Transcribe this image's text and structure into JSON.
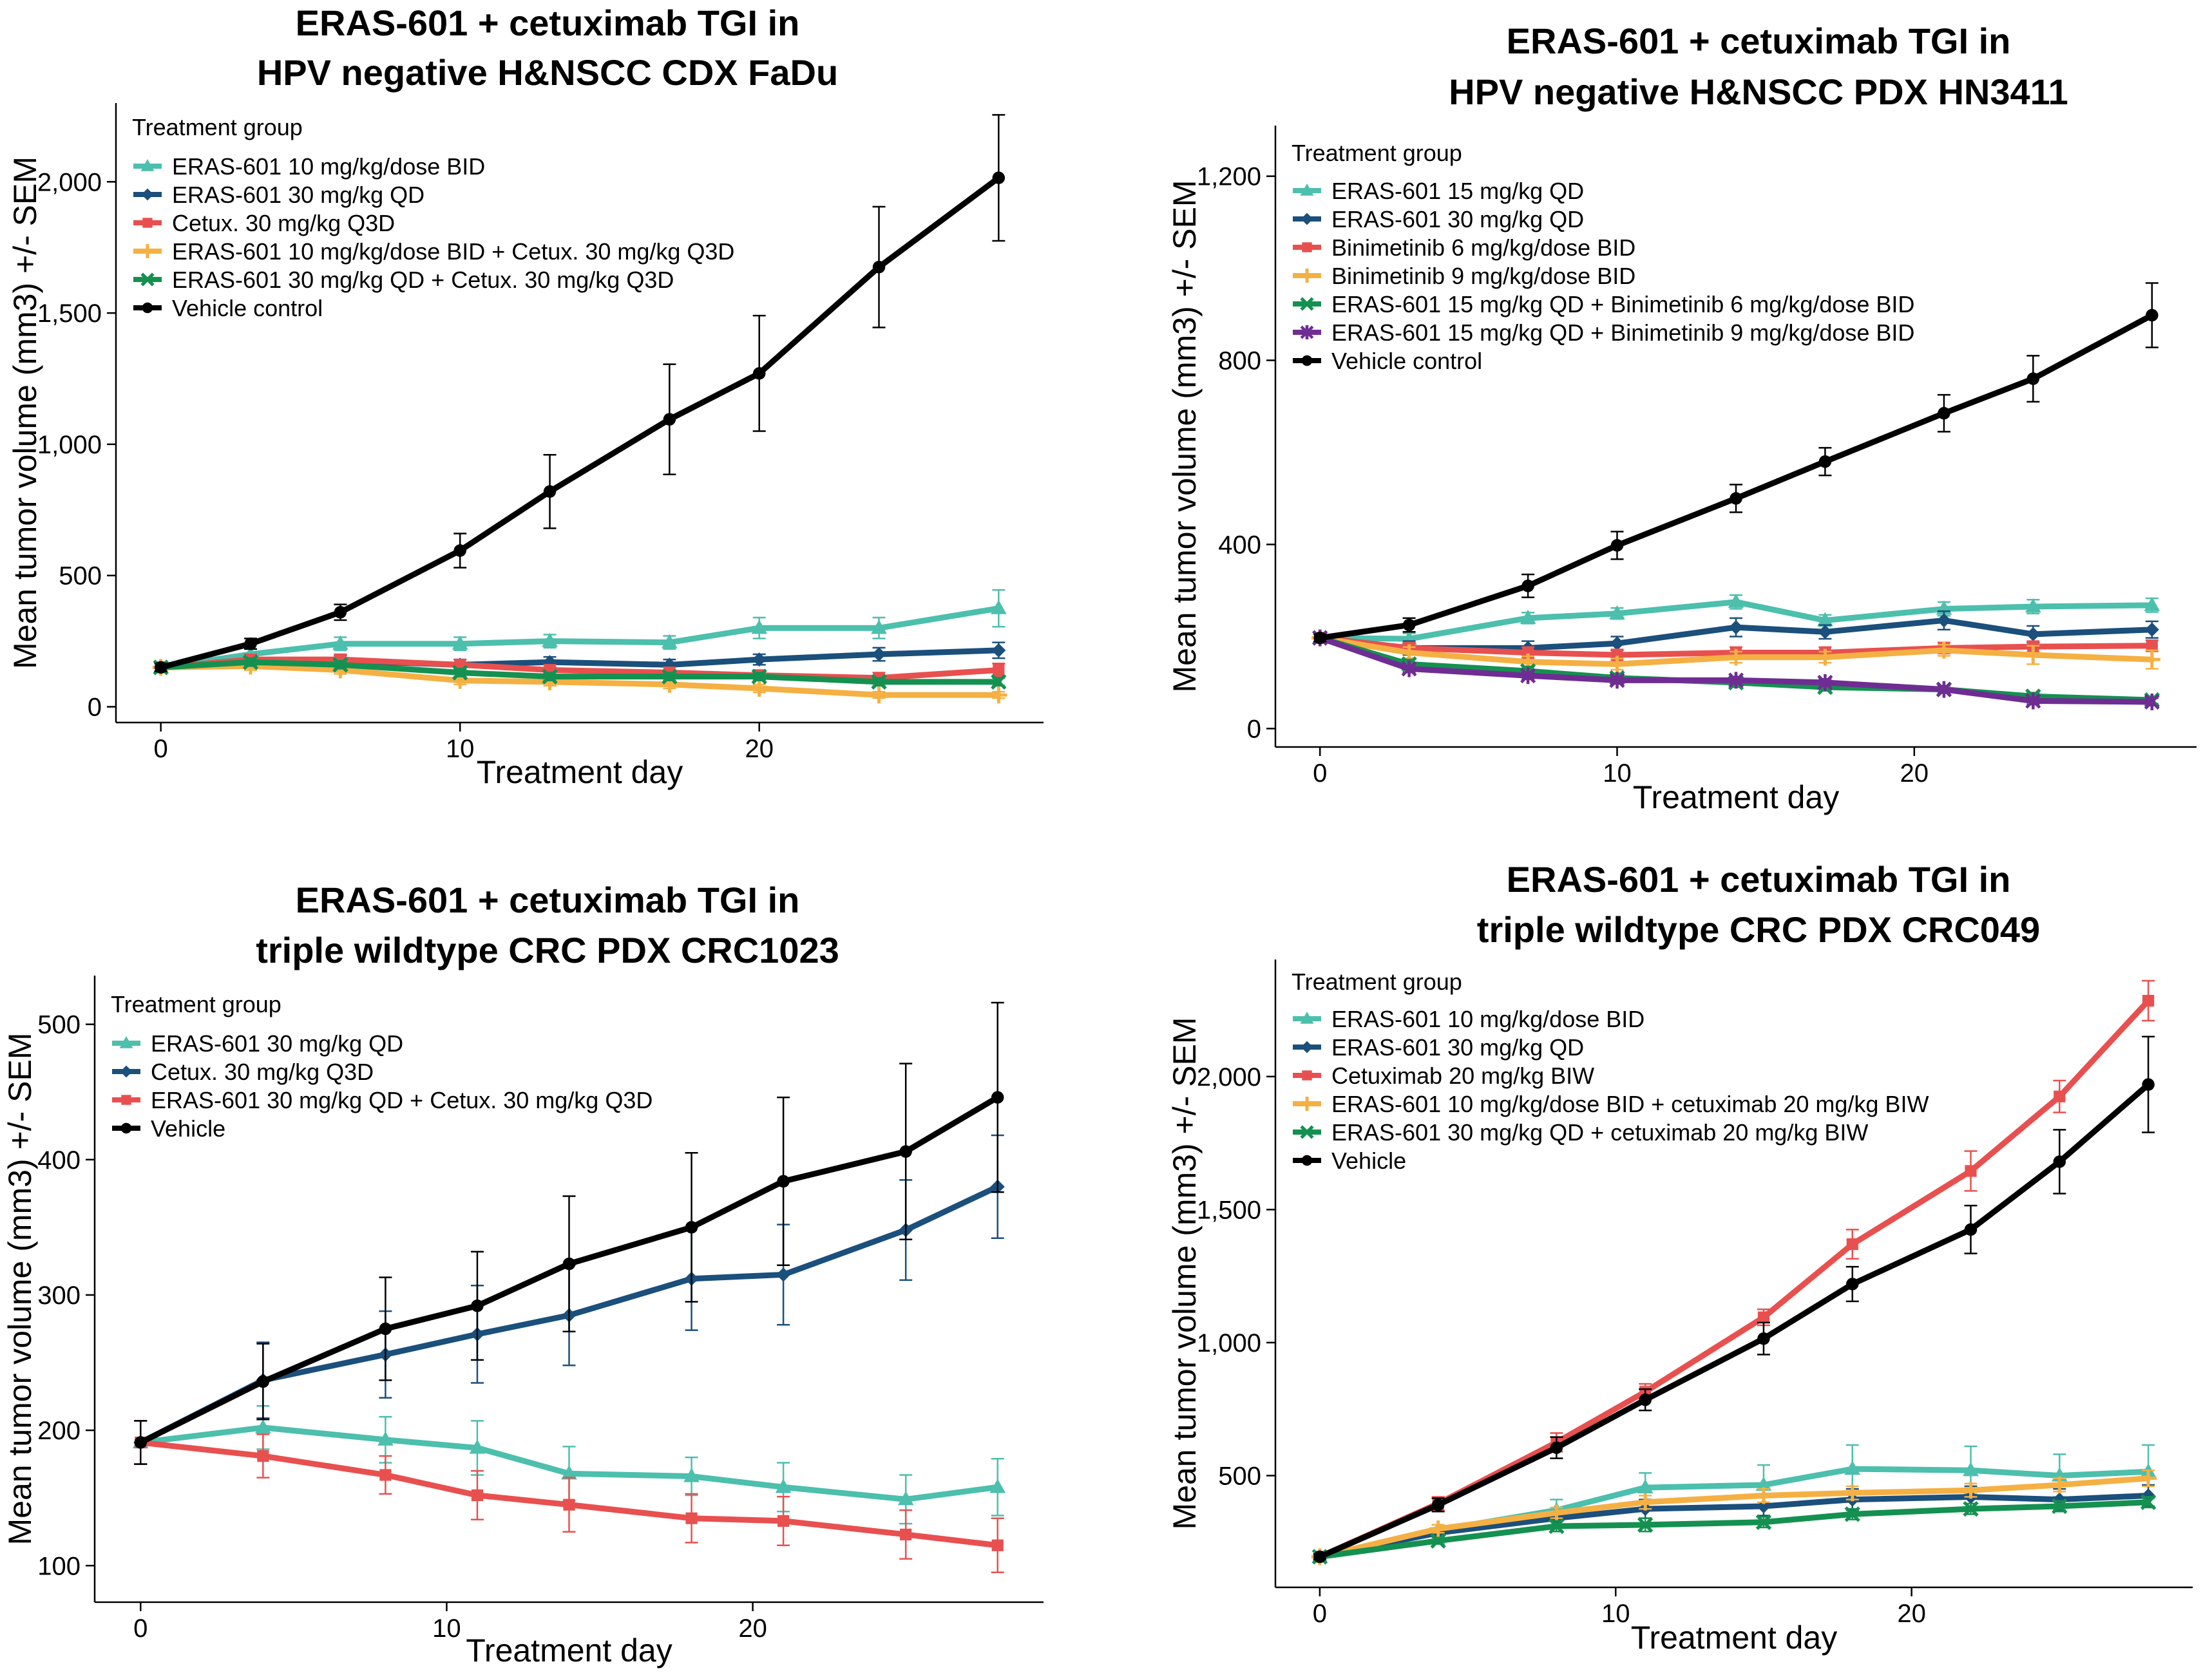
{
  "chart_data": [
    {
      "type": "line",
      "title": [
        "ERAS-601 + cetuximab TGI in",
        "HPV negative H&NSCC CDX FaDu"
      ],
      "xlabel": "Treatment day",
      "ylabel": "Mean tumor volume (mm3) +/- SEM",
      "xlim": [
        -1.5,
        29.5
      ],
      "ylim": [
        -60,
        2300
      ],
      "xticks": [
        0,
        10,
        20
      ],
      "xtick_labels": [
        "0",
        "10",
        "20"
      ],
      "yticks": [
        0,
        500,
        1000,
        1500,
        2000
      ],
      "ytick_labels": [
        "0",
        "500",
        "1,000",
        "1,500",
        "2,000"
      ],
      "legend_title": "Treatment group",
      "legend_position": "top-left",
      "series": [
        {
          "name": "ERAS-601 10 mg/kg/dose BID",
          "color": "#4cbfad",
          "marker": "triangle",
          "x": [
            0,
            3,
            6,
            10,
            13,
            17,
            20,
            24,
            28
          ],
          "y": [
            150,
            200,
            240,
            240,
            250,
            245,
            300,
            300,
            375
          ],
          "err": [
            15,
            20,
            25,
            25,
            25,
            25,
            40,
            40,
            70
          ]
        },
        {
          "name": "ERAS-601 30 mg/kg QD",
          "color": "#1b4f7c",
          "marker": "diamond",
          "x": [
            0,
            3,
            6,
            10,
            13,
            17,
            20,
            24,
            28
          ],
          "y": [
            150,
            170,
            175,
            160,
            170,
            160,
            180,
            200,
            215
          ],
          "err": [
            15,
            20,
            20,
            20,
            20,
            20,
            20,
            25,
            30
          ]
        },
        {
          "name": "Cetux. 30 mg/kg Q3D",
          "color": "#e8504f",
          "marker": "square",
          "x": [
            0,
            3,
            6,
            10,
            13,
            17,
            20,
            24,
            28
          ],
          "y": [
            150,
            180,
            180,
            160,
            140,
            130,
            120,
            110,
            140
          ],
          "err": [
            15,
            20,
            20,
            20,
            20,
            20,
            20,
            20,
            25
          ]
        },
        {
          "name": "ERAS-601 10 mg/kg/dose BID + Cetux. 30 mg/kg Q3D",
          "color": "#f5b043",
          "marker": "plus",
          "x": [
            0,
            3,
            6,
            10,
            13,
            17,
            20,
            24,
            28
          ],
          "y": [
            150,
            155,
            140,
            100,
            95,
            85,
            70,
            45,
            45
          ],
          "err": [
            15,
            15,
            15,
            15,
            15,
            15,
            15,
            12,
            12
          ]
        },
        {
          "name": "ERAS-601 30 mg/kg QD + Cetux. 30 mg/kg Q3D",
          "color": "#149150",
          "marker": "cross",
          "x": [
            0,
            3,
            6,
            10,
            13,
            17,
            20,
            24,
            28
          ],
          "y": [
            150,
            170,
            160,
            130,
            115,
            115,
            115,
            95,
            95
          ],
          "err": [
            15,
            15,
            15,
            15,
            15,
            15,
            15,
            15,
            15
          ]
        },
        {
          "name": "Vehicle control",
          "color": "#000000",
          "marker": "circle",
          "x": [
            0,
            3,
            6,
            10,
            13,
            17,
            20,
            24,
            28
          ],
          "y": [
            150,
            240,
            360,
            595,
            820,
            1095,
            1270,
            1675,
            2015
          ],
          "err": [
            15,
            20,
            30,
            65,
            140,
            210,
            220,
            230,
            240
          ]
        }
      ]
    },
    {
      "type": "line",
      "title": [
        "ERAS-601 + cetuximab TGI in",
        "HPV negative H&NSCC PDX HN3411"
      ],
      "xlabel": "Treatment day",
      "ylabel": "Mean tumor volume (mm3) +/- SEM",
      "xlim": [
        -1.5,
        29.5
      ],
      "ylim": [
        -40,
        1310
      ],
      "xticks": [
        0,
        10,
        20
      ],
      "xtick_labels": [
        "0",
        "10",
        "20"
      ],
      "yticks": [
        0,
        400,
        800,
        1200
      ],
      "ytick_labels": [
        "0",
        "400",
        "800",
        "1,200"
      ],
      "legend_title": "Treatment group",
      "legend_position": "top-left",
      "series": [
        {
          "name": "ERAS-601 15 mg/kg QD",
          "color": "#4cbfad",
          "marker": "triangle",
          "x": [
            0,
            3,
            7,
            10,
            14,
            17,
            21,
            24,
            28
          ],
          "y": [
            197,
            195,
            240,
            250,
            275,
            235,
            260,
            265,
            268
          ],
          "err": [
            8,
            12,
            12,
            12,
            15,
            12,
            15,
            15,
            15
          ]
        },
        {
          "name": "ERAS-601 30 mg/kg QD",
          "color": "#1b4f7c",
          "marker": "diamond",
          "x": [
            0,
            3,
            7,
            10,
            14,
            17,
            21,
            24,
            28
          ],
          "y": [
            197,
            175,
            175,
            185,
            220,
            210,
            235,
            205,
            215
          ],
          "err": [
            8,
            15,
            15,
            15,
            20,
            15,
            20,
            18,
            18
          ]
        },
        {
          "name": "Binimetinib 6 mg/kg/dose BID",
          "color": "#e8504f",
          "marker": "square",
          "x": [
            0,
            3,
            7,
            10,
            14,
            17,
            21,
            24,
            28
          ],
          "y": [
            197,
            175,
            165,
            160,
            165,
            165,
            175,
            178,
            180
          ],
          "err": [
            8,
            12,
            12,
            12,
            12,
            12,
            12,
            12,
            12
          ]
        },
        {
          "name": "Binimetinib 9 mg/kg/dose BID",
          "color": "#f5b043",
          "marker": "plus",
          "x": [
            0,
            3,
            7,
            10,
            14,
            17,
            21,
            24,
            28
          ],
          "y": [
            197,
            165,
            145,
            140,
            155,
            155,
            170,
            160,
            150
          ],
          "err": [
            8,
            12,
            12,
            12,
            12,
            12,
            12,
            20,
            20
          ]
        },
        {
          "name": "ERAS-601 15 mg/kg QD + Binimetinib 6 mg/kg/dose BID",
          "color": "#149150",
          "marker": "cross",
          "x": [
            0,
            3,
            7,
            10,
            14,
            17,
            21,
            24,
            28
          ],
          "y": [
            197,
            140,
            125,
            110,
            100,
            90,
            85,
            70,
            62
          ],
          "err": [
            8,
            10,
            10,
            10,
            10,
            8,
            8,
            8,
            8
          ]
        },
        {
          "name": "ERAS-601 15 mg/kg QD + Binimetinib 9 mg/kg/dose BID",
          "color": "#6f2d93",
          "marker": "asterisk",
          "x": [
            0,
            3,
            7,
            10,
            14,
            17,
            21,
            24,
            28
          ],
          "y": [
            197,
            130,
            115,
            105,
            105,
            100,
            85,
            60,
            58
          ],
          "err": [
            8,
            8,
            8,
            8,
            8,
            8,
            8,
            8,
            8
          ]
        },
        {
          "name": "Vehicle control",
          "color": "#000000",
          "marker": "circle",
          "x": [
            0,
            3,
            7,
            10,
            14,
            17,
            21,
            24,
            28
          ],
          "y": [
            197,
            225,
            310,
            398,
            500,
            580,
            685,
            760,
            898
          ],
          "err": [
            8,
            15,
            25,
            30,
            30,
            30,
            40,
            50,
            70
          ]
        }
      ]
    },
    {
      "type": "line",
      "title": [
        "ERAS-601 + cetuximab TGI in",
        "triple wildtype CRC PDX CRC1023"
      ],
      "xlabel": "Treatment day",
      "ylabel": "Mean tumor volume (mm3) +/- SEM",
      "xlim": [
        -1.5,
        29.5
      ],
      "ylim": [
        73,
        536
      ],
      "xticks": [
        0,
        10,
        20
      ],
      "xtick_labels": [
        "0",
        "10",
        "20"
      ],
      "yticks": [
        100,
        200,
        300,
        400,
        500
      ],
      "ytick_labels": [
        "100",
        "200",
        "300",
        "400",
        "500"
      ],
      "legend_title": "Treatment group",
      "legend_position": "top-left",
      "series": [
        {
          "name": "ERAS-601 30 mg/kg QD",
          "color": "#4cbfad",
          "marker": "triangle",
          "x": [
            0,
            4,
            8,
            11,
            14,
            18,
            21,
            25,
            28
          ],
          "y": [
            191,
            202,
            193,
            187,
            168,
            166,
            158,
            149,
            158
          ],
          "err": [
            16,
            16,
            17,
            20,
            20,
            14,
            18,
            18,
            21
          ]
        },
        {
          "name": "Cetux. 30 mg/kg Q3D",
          "color": "#1b4f7c",
          "marker": "diamond",
          "x": [
            0,
            4,
            8,
            11,
            14,
            18,
            21,
            25,
            28
          ],
          "y": [
            191,
            237,
            256,
            271,
            285,
            312,
            315,
            348,
            380
          ],
          "err": [
            16,
            28,
            32,
            36,
            37,
            38,
            37,
            37,
            38
          ]
        },
        {
          "name": "ERAS-601 30 mg/kg QD + Cetux. 30 mg/kg Q3D",
          "color": "#e8504f",
          "marker": "square",
          "x": [
            0,
            4,
            8,
            11,
            14,
            18,
            21,
            25,
            28
          ],
          "y": [
            191,
            181,
            167,
            152,
            145,
            135,
            133,
            123,
            115
          ],
          "err": [
            16,
            16,
            14,
            18,
            20,
            18,
            18,
            18,
            20
          ]
        },
        {
          "name": "Vehicle",
          "color": "#000000",
          "marker": "circle",
          "x": [
            0,
            4,
            8,
            11,
            14,
            18,
            21,
            25,
            28
          ],
          "y": [
            191,
            236,
            275,
            292,
            323,
            350,
            384,
            406,
            446
          ],
          "err": [
            16,
            28,
            38,
            40,
            50,
            55,
            62,
            65,
            70
          ]
        }
      ]
    },
    {
      "type": "line",
      "title": [
        "ERAS-601 + cetuximab TGI in",
        "triple wildtype CRC PDX CRC049"
      ],
      "xlabel": "Treatment day",
      "ylabel": "Mean tumor volume (mm3) +/- SEM",
      "xlim": [
        -1.5,
        29.5
      ],
      "ylim": [
        80,
        2440
      ],
      "xticks": [
        0,
        10,
        20
      ],
      "xtick_labels": [
        "0",
        "10",
        "20"
      ],
      "yticks": [
        500,
        1000,
        1500,
        2000
      ],
      "ytick_labels": [
        "500",
        "1,000",
        "1,500",
        "2,000"
      ],
      "legend_title": "Treatment group",
      "legend_position": "top-left",
      "series": [
        {
          "name": "ERAS-601 10 mg/kg/dose BID",
          "color": "#4cbfad",
          "marker": "triangle",
          "x": [
            0,
            4,
            8,
            11,
            15,
            18,
            22,
            25,
            28
          ],
          "y": [
            195,
            295,
            370,
            455,
            465,
            525,
            520,
            500,
            515
          ],
          "err": [
            10,
            20,
            40,
            55,
            75,
            90,
            90,
            80,
            100
          ]
        },
        {
          "name": "ERAS-601 30 mg/kg QD",
          "color": "#1b4f7c",
          "marker": "diamond",
          "x": [
            0,
            4,
            8,
            11,
            15,
            18,
            22,
            25,
            28
          ],
          "y": [
            195,
            285,
            340,
            375,
            385,
            410,
            420,
            410,
            425
          ],
          "err": [
            10,
            15,
            25,
            35,
            35,
            40,
            40,
            40,
            40
          ]
        },
        {
          "name": "Cetuximab 20 mg/kg BIW",
          "color": "#e8504f",
          "marker": "square",
          "x": [
            0,
            4,
            8,
            11,
            15,
            18,
            22,
            25,
            28
          ],
          "y": [
            195,
            395,
            625,
            815,
            1095,
            1370,
            1645,
            1925,
            2285
          ],
          "err": [
            10,
            25,
            35,
            30,
            30,
            55,
            75,
            60,
            75
          ]
        },
        {
          "name": "ERAS-601 10 mg/kg/dose BID + cetuximab 20 mg/kg BIW",
          "color": "#f5b043",
          "marker": "plus",
          "x": [
            0,
            4,
            8,
            11,
            15,
            18,
            22,
            25,
            28
          ],
          "y": [
            195,
            300,
            360,
            400,
            425,
            435,
            445,
            465,
            490
          ],
          "err": [
            10,
            15,
            20,
            25,
            25,
            25,
            25,
            25,
            30
          ]
        },
        {
          "name": "ERAS-601 30 mg/kg QD + cetuximab 20 mg/kg BIW",
          "color": "#149150",
          "marker": "cross",
          "x": [
            0,
            4,
            8,
            11,
            15,
            18,
            22,
            25,
            28
          ],
          "y": [
            195,
            255,
            310,
            315,
            325,
            355,
            375,
            385,
            400
          ],
          "err": [
            10,
            12,
            20,
            25,
            20,
            20,
            20,
            20,
            20
          ]
        },
        {
          "name": "Vehicle",
          "color": "#000000",
          "marker": "circle",
          "x": [
            0,
            4,
            8,
            11,
            15,
            18,
            22,
            25,
            28
          ],
          "y": [
            195,
            390,
            605,
            785,
            1015,
            1220,
            1425,
            1680,
            1970
          ],
          "err": [
            10,
            25,
            40,
            40,
            60,
            65,
            90,
            120,
            180
          ]
        }
      ]
    }
  ]
}
